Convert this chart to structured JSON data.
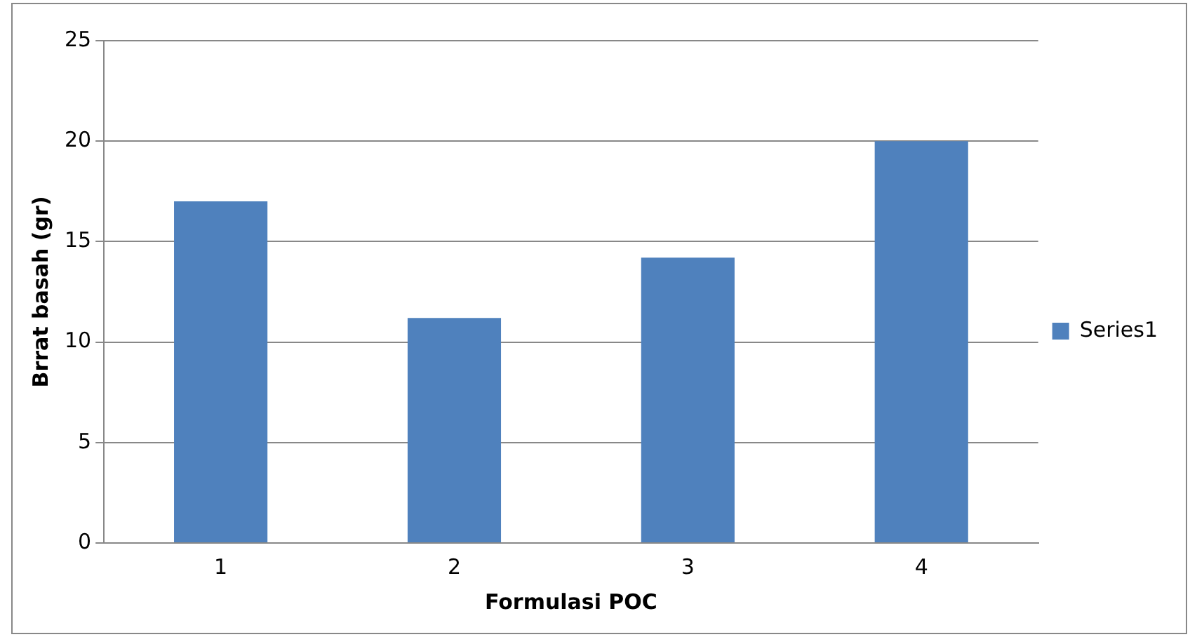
{
  "chart_data": {
    "type": "bar",
    "xlabel": "Formulasi POC",
    "ylabel": "Brrat basah (gr)",
    "categories": [
      "1",
      "2",
      "3",
      "4"
    ],
    "series": [
      {
        "name": "Series1",
        "color": "#4f81bd",
        "values": [
          17.0,
          11.2,
          14.2,
          20.0
        ]
      }
    ],
    "ylim": [
      0,
      25
    ],
    "yticks": [
      0,
      5,
      10,
      15,
      20,
      25
    ],
    "grid": "y",
    "legend": "right"
  }
}
